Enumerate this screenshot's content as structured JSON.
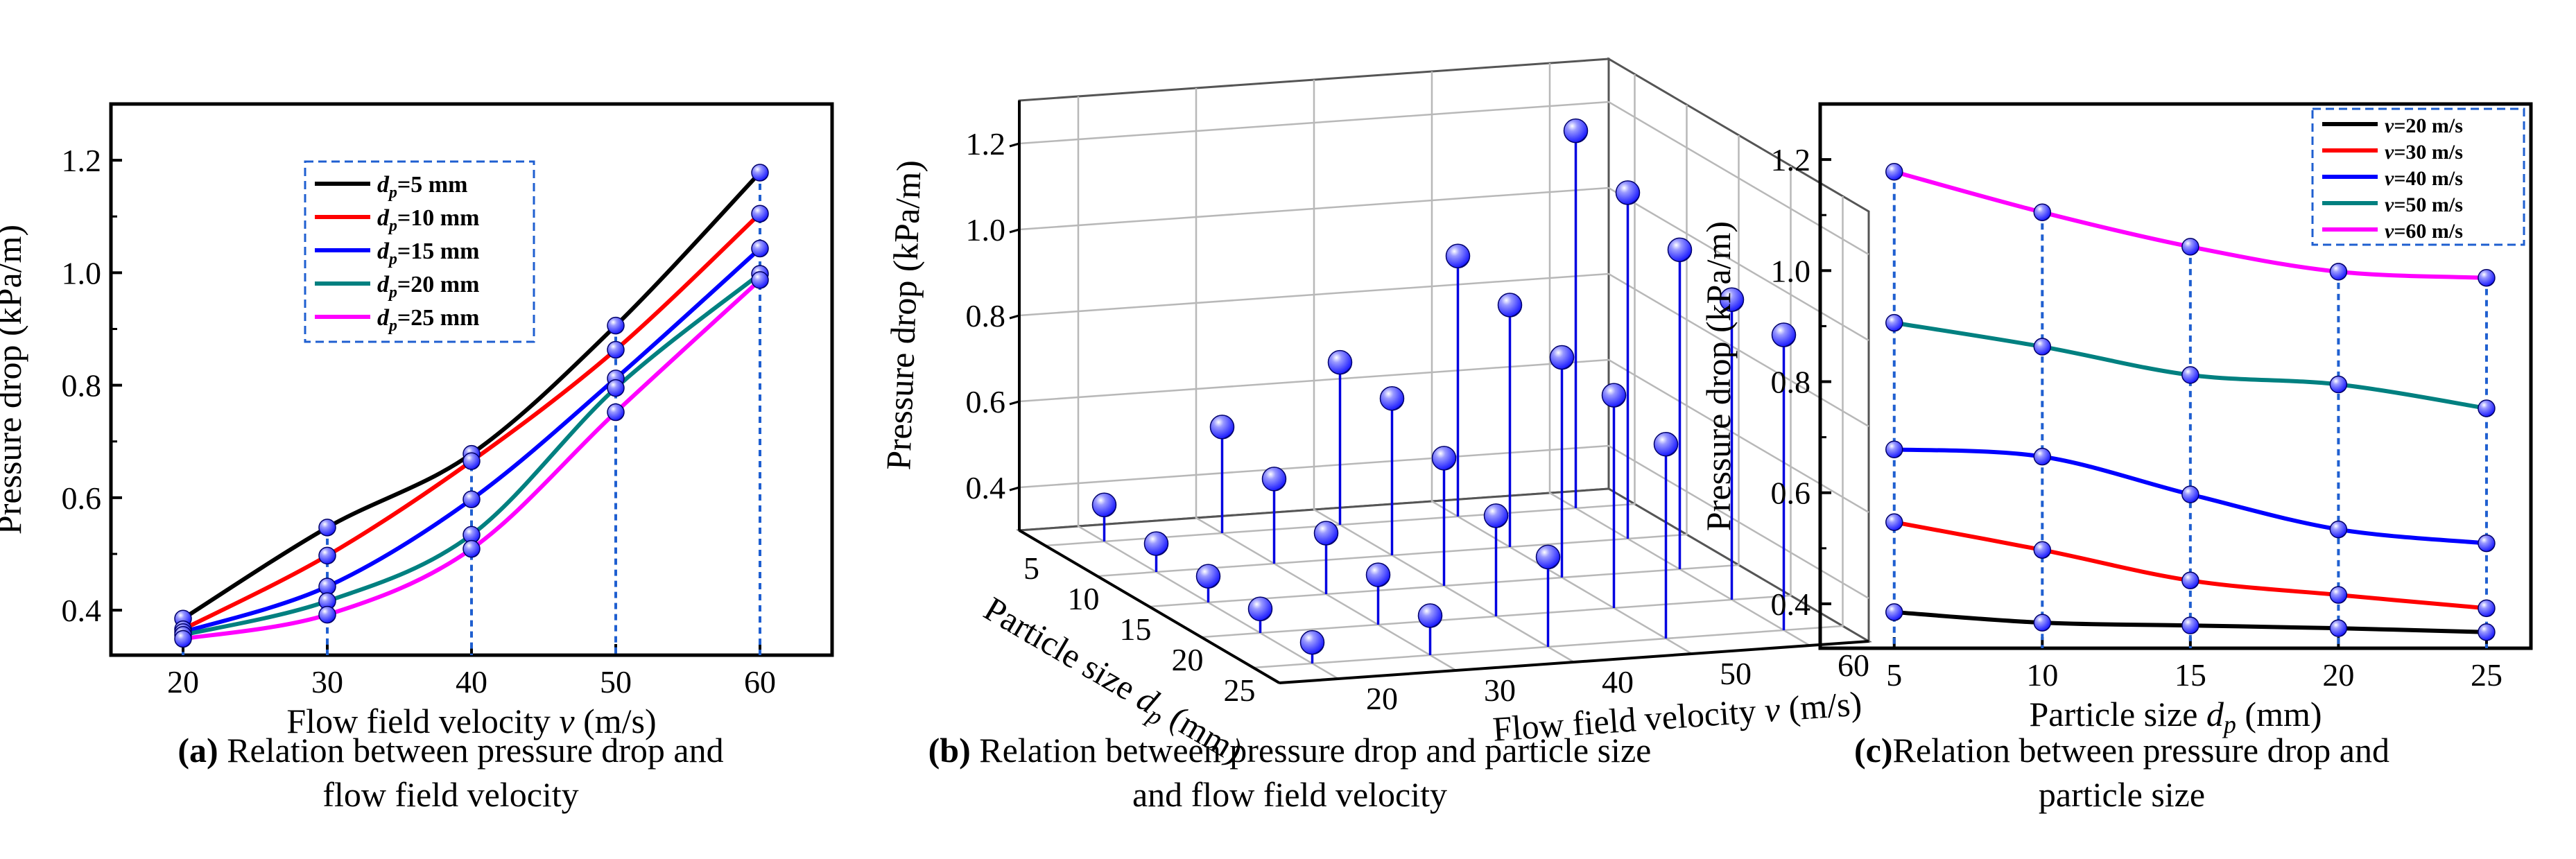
{
  "captions": {
    "a_label": "(a)",
    "a_line1": " Relation between pressure drop and",
    "a_line2": "flow field velocity",
    "b_label": "(b)",
    "b_line1": " Relation between pressure drop and particle size",
    "b_line2": "and flow field velocity",
    "c_label": "(c)",
    "c_line1": "Relation between pressure drop and",
    "c_line2": "particle size"
  },
  "colors": {
    "series": [
      "#000000",
      "#ff0000",
      "#0000ff",
      "#008080",
      "#ff00ff"
    ],
    "marker": "#1a1aff",
    "marker_highlight": "#9999ff",
    "guide": "#1f5fd0",
    "stem3d": "#0000e0",
    "grid3d": "#b8b8b8",
    "legend_border": "#1f5fd0"
  },
  "chart_data": [
    {
      "id": "a",
      "type": "line",
      "title": "",
      "xlabel": "Flow field velocity v (m/s)",
      "xlabel_main": "Flow field velocity ",
      "xlabel_var": "v",
      "xlabel_unit": " (m/s)",
      "ylabel": "Pressure drop (kPa/m)",
      "x": [
        20,
        30,
        40,
        50,
        60
      ],
      "xlim": [
        15,
        65
      ],
      "ylim": [
        0.32,
        1.3
      ],
      "xticks": [
        "20",
        "30",
        "40",
        "50",
        "60"
      ],
      "yticks": [
        "0.4",
        "0.6",
        "0.8",
        "1.0",
        "1.2"
      ],
      "legend_position": "upper-center",
      "series": [
        {
          "name": "dp=5 mm",
          "var": "d",
          "sub": "p",
          "rest": "=5 mm",
          "values": [
            0.385,
            0.547,
            0.678,
            0.906,
            1.178
          ]
        },
        {
          "name": "dp=10 mm",
          "var": "d",
          "sub": "p",
          "rest": "=10 mm",
          "values": [
            0.366,
            0.497,
            0.665,
            0.863,
            1.105
          ]
        },
        {
          "name": "dp=15 mm",
          "var": "d",
          "sub": "p",
          "rest": "=15 mm",
          "values": [
            0.361,
            0.442,
            0.597,
            0.812,
            1.043
          ]
        },
        {
          "name": "dp=20 mm",
          "var": "d",
          "sub": "p",
          "rest": "=20 mm",
          "values": [
            0.356,
            0.416,
            0.534,
            0.795,
            0.998
          ]
        },
        {
          "name": "dp=25 mm",
          "var": "d",
          "sub": "p",
          "rest": "=25 mm",
          "values": [
            0.349,
            0.392,
            0.509,
            0.752,
            0.987
          ]
        }
      ]
    },
    {
      "id": "b",
      "type": "scatter3d",
      "title": "",
      "xlabel": "Particle size dp (mm)",
      "xlabel_main": "Particle size ",
      "xlabel_var": "d",
      "xlabel_sub": "p",
      "xlabel_unit": " (mm)",
      "ylabel": "Flow field velocity v (m/s)",
      "ylabel_main": "Flow field velocity ",
      "ylabel_var": "v",
      "ylabel_unit": " (m/s)",
      "zlabel": "Pressure drop (kPa/m)",
      "x": [
        5,
        10,
        15,
        20,
        25
      ],
      "y": [
        20,
        30,
        40,
        50,
        60
      ],
      "xticks": [
        "5",
        "10",
        "15",
        "20",
        "25"
      ],
      "yticks": [
        "20",
        "30",
        "40",
        "50",
        "60"
      ],
      "zticks": [
        "0.4",
        "0.6",
        "0.8",
        "1.0",
        "1.2"
      ],
      "zlim": [
        0.3,
        1.3
      ],
      "z_values_by_velocity": [
        [
          0.385,
          0.366,
          0.361,
          0.356,
          0.349
        ],
        [
          0.547,
          0.497,
          0.442,
          0.416,
          0.392
        ],
        [
          0.678,
          0.665,
          0.597,
          0.534,
          0.509
        ],
        [
          0.906,
          0.863,
          0.812,
          0.795,
          0.752
        ],
        [
          1.178,
          1.105,
          1.043,
          0.998,
          0.987
        ]
      ]
    },
    {
      "id": "c",
      "type": "line",
      "title": "",
      "xlabel": "Particle size dp (mm)",
      "xlabel_main": "Particle size ",
      "xlabel_var": "d",
      "xlabel_sub": "p",
      "xlabel_unit": " (mm)",
      "ylabel": "Pressure drop (kPa/m)",
      "x": [
        5,
        10,
        15,
        20,
        25
      ],
      "xlim": [
        2.5,
        26.5
      ],
      "ylim": [
        0.32,
        1.3
      ],
      "xticks": [
        "5",
        "10",
        "15",
        "20",
        "25"
      ],
      "yticks": [
        "0.4",
        "0.6",
        "0.8",
        "1.0",
        "1.2"
      ],
      "legend_position": "upper-right",
      "series": [
        {
          "name": "v=20 m/s",
          "var": "v",
          "rest": "=20 m/s",
          "values": [
            0.385,
            0.366,
            0.361,
            0.356,
            0.349
          ]
        },
        {
          "name": "v=30 m/s",
          "var": "v",
          "rest": "=30 m/s",
          "values": [
            0.547,
            0.497,
            0.442,
            0.416,
            0.392
          ]
        },
        {
          "name": "v=40 m/s",
          "var": "v",
          "rest": "=40 m/s",
          "values": [
            0.678,
            0.665,
            0.597,
            0.534,
            0.509
          ]
        },
        {
          "name": "v=50 m/s",
          "var": "v",
          "rest": "=50 m/s",
          "values": [
            0.906,
            0.863,
            0.812,
            0.795,
            0.752
          ]
        },
        {
          "name": "v=60 m/s",
          "var": "v",
          "rest": "=60 m/s",
          "values": [
            1.178,
            1.105,
            1.043,
            0.998,
            0.987
          ]
        }
      ]
    }
  ]
}
